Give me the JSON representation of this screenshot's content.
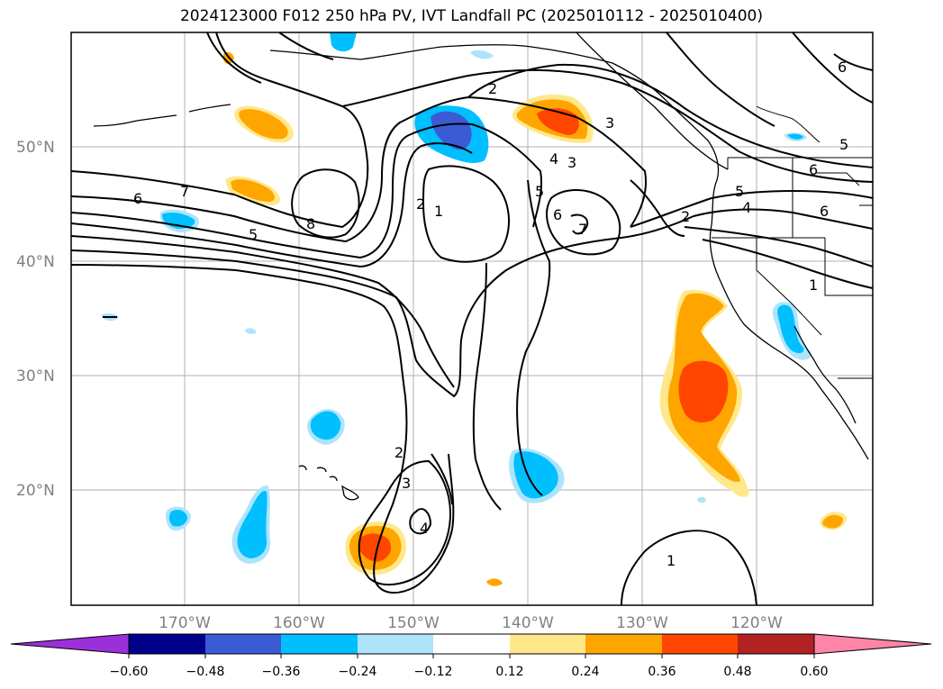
{
  "title": "2024123000 F012 250 hPa PV, IVT Landfall PC (2025010112 - 2025010400)",
  "map": {
    "lat_labels": [
      "50°N",
      "40°N",
      "30°N",
      "20°N"
    ],
    "lon_labels": [
      "170°W",
      "160°W",
      "150°W",
      "140°W",
      "130°W",
      "120°W"
    ],
    "contour_labels": [
      "7",
      "6",
      "5",
      "8",
      "2",
      "1",
      "5",
      "6",
      "7",
      "4",
      "3",
      "2",
      "3",
      "1",
      "2",
      "4",
      "6",
      "5",
      "6",
      "5",
      "6",
      "2",
      "3",
      "4",
      "1"
    ]
  },
  "colorbar": {
    "ticks": [
      "−0.60",
      "−0.48",
      "−0.36",
      "−0.24",
      "−0.12",
      "0.12",
      "0.24",
      "0.36",
      "0.48",
      "0.60"
    ],
    "colors": [
      "#9b30d9",
      "#00008b",
      "#3b5bd5",
      "#00bfff",
      "#aee4fb",
      "#ffffff",
      "#ffe88a",
      "#ffa500",
      "#ff4500",
      "#b22222",
      "#ff85a8"
    ]
  }
}
